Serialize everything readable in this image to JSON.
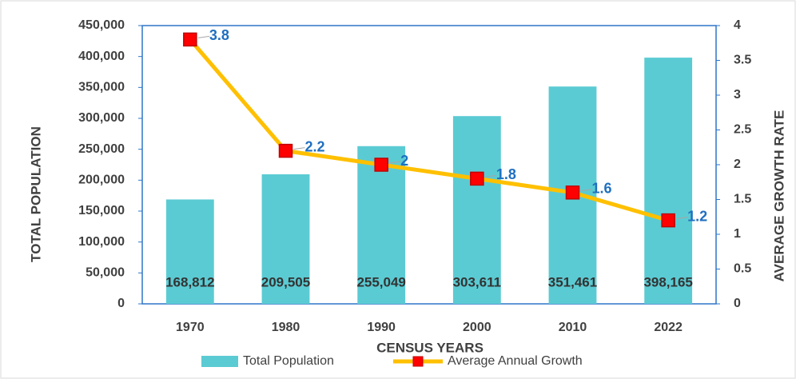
{
  "chart_data": {
    "type": "bar_line",
    "x_label": "CENSUS YEARS",
    "y_label": "TOTAL POPULATION",
    "y2_label": "AVERAGE GROWTH RATE",
    "categories": [
      "1970",
      "1980",
      "1990",
      "2000",
      "2010",
      "2022"
    ],
    "series": [
      {
        "name": "Total Population",
        "type": "bar",
        "color": "#5bcbd3",
        "values": [
          168812,
          209505,
          255049,
          303611,
          351461,
          398165
        ],
        "value_labels": [
          "168,812",
          "209,505",
          "255,049",
          "303,611",
          "351,461",
          "398,165"
        ]
      },
      {
        "name": "Average Annual Growth",
        "type": "line",
        "axis": "y2",
        "color": "#ffc000",
        "marker_color": "#ff0000",
        "values": [
          3.8,
          2.2,
          2,
          1.8,
          1.6,
          1.2
        ]
      }
    ],
    "ylim": [
      0,
      450000
    ],
    "yticks": [
      {
        "value": 0,
        "label": "0"
      },
      {
        "value": 50000,
        "label": "50,000"
      },
      {
        "value": 100000,
        "label": "100,000"
      },
      {
        "value": 150000,
        "label": "150,000"
      },
      {
        "value": 200000,
        "label": "200,000"
      },
      {
        "value": 250000,
        "label": "250,000"
      },
      {
        "value": 300000,
        "label": "300,000"
      },
      {
        "value": 350000,
        "label": "350,000"
      },
      {
        "value": 400000,
        "label": "400,000"
      },
      {
        "value": 450000,
        "label": "450,000"
      }
    ],
    "y2lim": [
      0,
      4
    ],
    "y2ticks": [
      0,
      0.5,
      1,
      1.5,
      2,
      2.5,
      3,
      3.5,
      4
    ],
    "legend": "bottom"
  }
}
